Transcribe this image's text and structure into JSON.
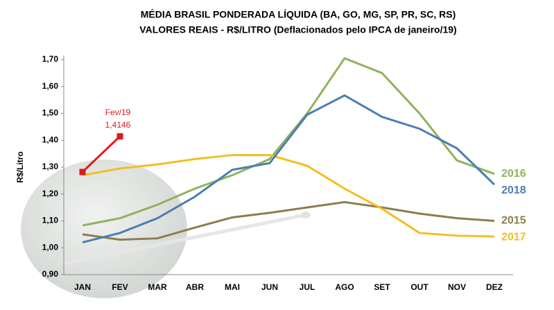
{
  "chart_data": {
    "type": "line",
    "title": "MÉDIA BRASIL PONDERADA LÍQUIDA (BA, GO, MG, SP, PR, SC, RS)",
    "subtitle": "VALORES REAIS - R$/LITRO (Deflacionados pelo IPCA de janeiro/19)",
    "y_label": "R$/Litro",
    "categories": [
      "JAN",
      "FEV",
      "MAR",
      "ABR",
      "MAI",
      "JUN",
      "JUL",
      "AGO",
      "SET",
      "OUT",
      "NOV",
      "DEZ"
    ],
    "series": [
      {
        "name": "2015",
        "color": "#8b7d4f",
        "values": [
          1.05,
          1.03,
          1.035,
          1.075,
          1.113,
          1.13,
          1.15,
          1.17,
          1.15,
          1.127,
          1.11,
          1.1
        ]
      },
      {
        "name": "2016",
        "color": "#8fb35a",
        "values": [
          1.083,
          1.11,
          1.16,
          1.22,
          1.27,
          1.33,
          1.5,
          1.705,
          1.65,
          1.5,
          1.325,
          1.275
        ]
      },
      {
        "name": "2017",
        "color": "#f5bd1f",
        "values": [
          1.27,
          1.295,
          1.31,
          1.33,
          1.345,
          1.345,
          1.305,
          1.22,
          1.145,
          1.055,
          1.045,
          1.042
        ]
      },
      {
        "name": "2018",
        "color": "#4a7db3",
        "values": [
          1.02,
          1.055,
          1.11,
          1.19,
          1.29,
          1.315,
          1.495,
          1.567,
          1.487,
          1.443,
          1.37,
          1.235
        ]
      },
      {
        "color": "#e3161b",
        "values": [
          1.282,
          1.4146,
          null,
          null,
          null,
          null,
          null,
          null,
          null,
          null,
          null,
          null
        ],
        "value_labels": [
          null,
          "1,4146",
          null,
          null,
          null,
          null,
          null,
          null,
          null,
          null,
          null,
          null
        ]
      }
    ],
    "annotation": "Fev/19",
    "ylim": [
      0.9,
      1.7
    ],
    "yticks": [
      {
        "value": 0.9,
        "label": "0,90"
      },
      {
        "value": 1.0,
        "label": "1,00"
      },
      {
        "value": 1.1,
        "label": "1,10"
      },
      {
        "value": 1.2,
        "label": "1,20"
      },
      {
        "value": 1.3,
        "label": "1,30"
      },
      {
        "value": 1.4,
        "label": "1,40"
      },
      {
        "value": 1.5,
        "label": "1,50"
      },
      {
        "value": 1.6,
        "label": "1,60"
      },
      {
        "value": 1.7,
        "label": "1,70"
      }
    ],
    "grid": false
  }
}
